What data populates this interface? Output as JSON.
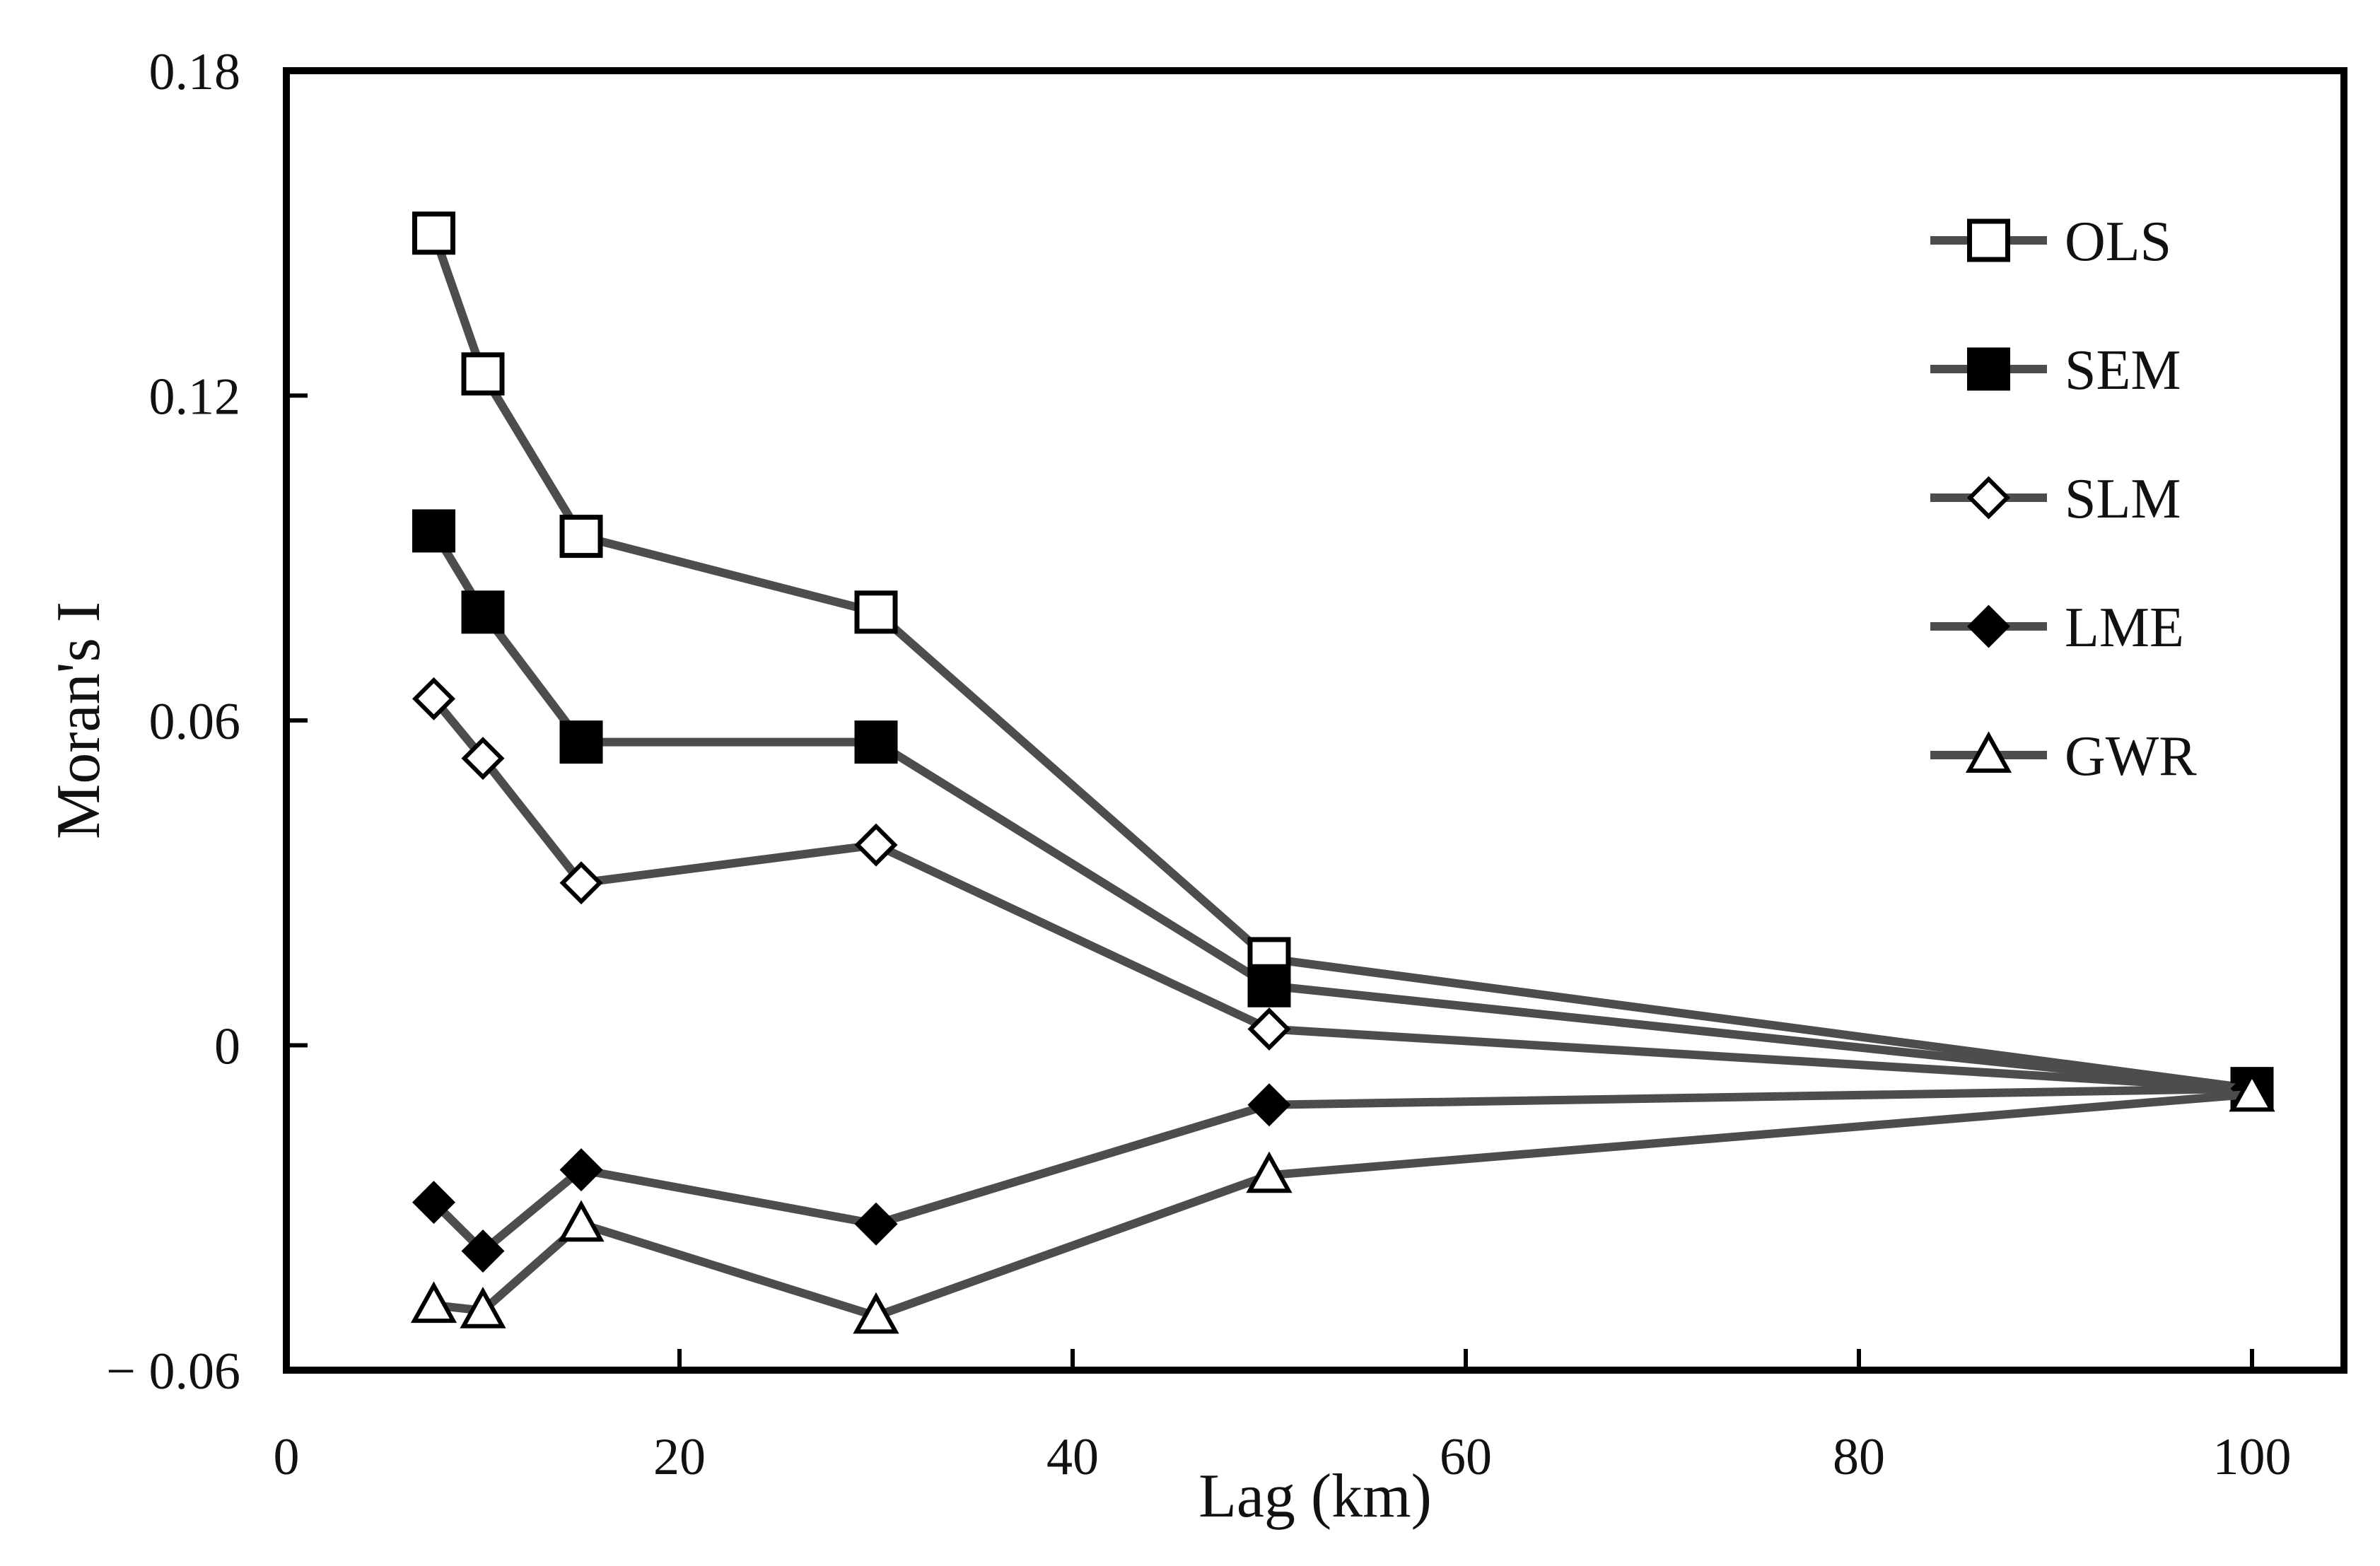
{
  "chart_data": {
    "type": "line",
    "title": "",
    "xlabel": "Lag (km)",
    "ylabel": "Moran's I",
    "xlim": [
      0,
      105
    ],
    "ylim": [
      -0.06,
      0.18
    ],
    "xticks": [
      0,
      20,
      40,
      60,
      80,
      100
    ],
    "xtick_labels": [
      "0",
      "20",
      "40",
      "60",
      "80",
      "100"
    ],
    "yticks": [
      -0.06,
      0,
      0.06,
      0.12,
      0.18
    ],
    "ytick_labels": [
      "− 0.06",
      "0",
      "0.06",
      "0.12",
      "0.18"
    ],
    "grid": false,
    "legend_position": "top-right",
    "series": [
      {
        "name": "OLS",
        "marker": "square",
        "fill": "#ffffff",
        "x": [
          7.5,
          10,
          15,
          30,
          50,
          100
        ],
        "values": [
          0.15,
          0.124,
          0.094,
          0.08,
          0.016,
          -0.008
        ]
      },
      {
        "name": "SEM",
        "marker": "square",
        "fill": "#000000",
        "x": [
          7.5,
          10,
          15,
          30,
          50,
          100
        ],
        "values": [
          0.095,
          0.08,
          0.056,
          0.056,
          0.011,
          -0.008
        ]
      },
      {
        "name": "SLM",
        "marker": "diamond",
        "fill": "#ffffff",
        "x": [
          7.5,
          10,
          15,
          30,
          50,
          100
        ],
        "values": [
          0.064,
          0.053,
          0.03,
          0.037,
          0.003,
          -0.008
        ]
      },
      {
        "name": "LME",
        "marker": "diamond",
        "fill": "#000000",
        "x": [
          7.5,
          10,
          15,
          30,
          50,
          100
        ],
        "values": [
          -0.029,
          -0.038,
          -0.023,
          -0.033,
          -0.011,
          -0.008
        ]
      },
      {
        "name": "GWR",
        "marker": "triangle",
        "fill": "#ffffff",
        "x": [
          7.5,
          10,
          15,
          30,
          50,
          100
        ],
        "values": [
          -0.048,
          -0.049,
          -0.033,
          -0.05,
          -0.024,
          -0.009
        ]
      }
    ]
  },
  "colors": {
    "line": "#4d4d4d",
    "frame": "#000000",
    "marker_edge": "#000000"
  }
}
